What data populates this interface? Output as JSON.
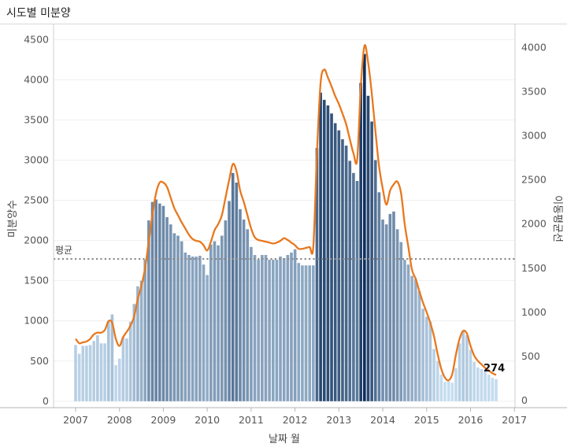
{
  "header": {
    "title": "시도별 미분양"
  },
  "chart_data": {
    "type": "bar",
    "xlabel": "날짜 월",
    "ylabel_left": "미분양수",
    "ylabel_right": "이동평균선",
    "average_label": "평균",
    "average_value": 1770,
    "last_value_label": "274",
    "x_ticks": [
      "2007",
      "2008",
      "2009",
      "2010",
      "2011",
      "2012",
      "2013",
      "2014",
      "2015",
      "2016",
      "2017"
    ],
    "y_left_ticks": [
      0,
      500,
      1000,
      1500,
      2000,
      2500,
      3000,
      3500,
      4000,
      4500
    ],
    "y_right_ticks": [
      0,
      500,
      1000,
      1500,
      2000,
      2500,
      3000,
      3500,
      4000
    ],
    "ylim_left": [
      -80,
      4620
    ],
    "ylim_right": [
      -80,
      4200
    ],
    "x_start": "2007-01",
    "grid": true,
    "color_scale": {
      "low": "#c6ddf0",
      "high": "#0d2f5c"
    },
    "line_color": "#e8781e",
    "series": [
      {
        "name": "미분양수",
        "values": [
          700,
          590,
          690,
          690,
          700,
          750,
          820,
          720,
          720,
          1000,
          1080,
          450,
          530,
          800,
          780,
          990,
          1210,
          1430,
          1500,
          1760,
          2250,
          2480,
          2510,
          2460,
          2430,
          2290,
          2200,
          2090,
          2060,
          1990,
          1850,
          1820,
          1800,
          1800,
          1810,
          1700,
          1570,
          1950,
          1990,
          1940,
          2060,
          2250,
          2490,
          2840,
          2720,
          2390,
          2260,
          2140,
          1920,
          1820,
          1760,
          1820,
          1820,
          1760,
          1760,
          1760,
          1800,
          1780,
          1820,
          1850,
          1890,
          1720,
          1690,
          1690,
          1690,
          1690,
          3150,
          3840,
          3750,
          3680,
          3580,
          3460,
          3370,
          3260,
          3180,
          2990,
          2840,
          2740,
          3960,
          4320,
          3800,
          3480,
          3000,
          2600,
          2260,
          2200,
          2330,
          2360,
          2140,
          1980,
          1760,
          1700,
          1560,
          1520,
          1370,
          1150,
          1050,
          990,
          650,
          500,
          330,
          240,
          250,
          230,
          410,
          720,
          880,
          820,
          640,
          490,
          420,
          400,
          380,
          330,
          290,
          274
        ]
      },
      {
        "name": "이동평균선",
        "values": [
          700,
          650,
          660,
          670,
          700,
          750,
          770,
          770,
          800,
          900,
          880,
          700,
          620,
          720,
          780,
          850,
          950,
          1150,
          1300,
          1500,
          1800,
          2100,
          2350,
          2470,
          2470,
          2420,
          2300,
          2180,
          2100,
          2020,
          1950,
          1880,
          1830,
          1810,
          1800,
          1760,
          1700,
          1800,
          1930,
          2000,
          2100,
          2300,
          2500,
          2680,
          2600,
          2380,
          2250,
          2100,
          1950,
          1850,
          1820,
          1810,
          1800,
          1790,
          1780,
          1790,
          1810,
          1840,
          1820,
          1790,
          1760,
          1720,
          1720,
          1730,
          1740,
          1740,
          2800,
          3600,
          3750,
          3660,
          3560,
          3450,
          3360,
          3250,
          3130,
          2960,
          2800,
          2730,
          3560,
          4020,
          3830,
          3480,
          3050,
          2650,
          2400,
          2220,
          2380,
          2450,
          2480,
          2350,
          2000,
          1740,
          1480,
          1380,
          1240,
          1110,
          1000,
          880,
          730,
          530,
          360,
          260,
          230,
          300,
          520,
          700,
          790,
          760,
          620,
          510,
          450,
          410,
          370,
          340,
          310,
          290
        ]
      }
    ]
  }
}
